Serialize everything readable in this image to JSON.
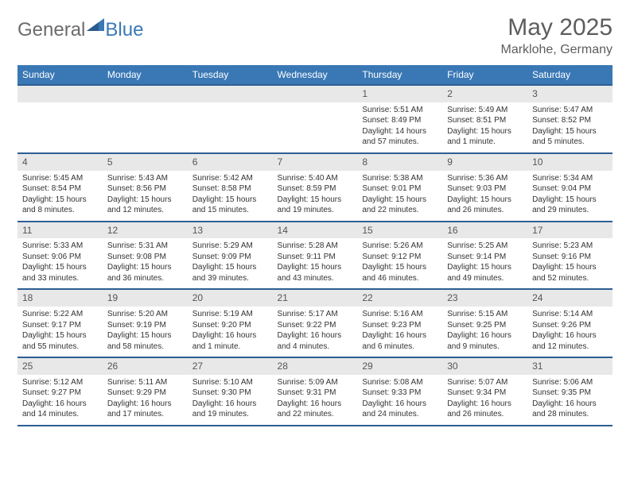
{
  "brand": {
    "part1": "General",
    "part2": "Blue"
  },
  "title": "May 2025",
  "location": "Marklohe, Germany",
  "colors": {
    "header_bg": "#3a78b5",
    "header_border": "#2d5e94",
    "daynum_bg": "#e8e8e8"
  },
  "day_headers": [
    "Sunday",
    "Monday",
    "Tuesday",
    "Wednesday",
    "Thursday",
    "Friday",
    "Saturday"
  ],
  "weeks": [
    [
      null,
      null,
      null,
      null,
      {
        "n": "1",
        "sr": "5:51 AM",
        "ss": "8:49 PM",
        "dl": "14 hours and 57 minutes."
      },
      {
        "n": "2",
        "sr": "5:49 AM",
        "ss": "8:51 PM",
        "dl": "15 hours and 1 minute."
      },
      {
        "n": "3",
        "sr": "5:47 AM",
        "ss": "8:52 PM",
        "dl": "15 hours and 5 minutes."
      }
    ],
    [
      {
        "n": "4",
        "sr": "5:45 AM",
        "ss": "8:54 PM",
        "dl": "15 hours and 8 minutes."
      },
      {
        "n": "5",
        "sr": "5:43 AM",
        "ss": "8:56 PM",
        "dl": "15 hours and 12 minutes."
      },
      {
        "n": "6",
        "sr": "5:42 AM",
        "ss": "8:58 PM",
        "dl": "15 hours and 15 minutes."
      },
      {
        "n": "7",
        "sr": "5:40 AM",
        "ss": "8:59 PM",
        "dl": "15 hours and 19 minutes."
      },
      {
        "n": "8",
        "sr": "5:38 AM",
        "ss": "9:01 PM",
        "dl": "15 hours and 22 minutes."
      },
      {
        "n": "9",
        "sr": "5:36 AM",
        "ss": "9:03 PM",
        "dl": "15 hours and 26 minutes."
      },
      {
        "n": "10",
        "sr": "5:34 AM",
        "ss": "9:04 PM",
        "dl": "15 hours and 29 minutes."
      }
    ],
    [
      {
        "n": "11",
        "sr": "5:33 AM",
        "ss": "9:06 PM",
        "dl": "15 hours and 33 minutes."
      },
      {
        "n": "12",
        "sr": "5:31 AM",
        "ss": "9:08 PM",
        "dl": "15 hours and 36 minutes."
      },
      {
        "n": "13",
        "sr": "5:29 AM",
        "ss": "9:09 PM",
        "dl": "15 hours and 39 minutes."
      },
      {
        "n": "14",
        "sr": "5:28 AM",
        "ss": "9:11 PM",
        "dl": "15 hours and 43 minutes."
      },
      {
        "n": "15",
        "sr": "5:26 AM",
        "ss": "9:12 PM",
        "dl": "15 hours and 46 minutes."
      },
      {
        "n": "16",
        "sr": "5:25 AM",
        "ss": "9:14 PM",
        "dl": "15 hours and 49 minutes."
      },
      {
        "n": "17",
        "sr": "5:23 AM",
        "ss": "9:16 PM",
        "dl": "15 hours and 52 minutes."
      }
    ],
    [
      {
        "n": "18",
        "sr": "5:22 AM",
        "ss": "9:17 PM",
        "dl": "15 hours and 55 minutes."
      },
      {
        "n": "19",
        "sr": "5:20 AM",
        "ss": "9:19 PM",
        "dl": "15 hours and 58 minutes."
      },
      {
        "n": "20",
        "sr": "5:19 AM",
        "ss": "9:20 PM",
        "dl": "16 hours and 1 minute."
      },
      {
        "n": "21",
        "sr": "5:17 AM",
        "ss": "9:22 PM",
        "dl": "16 hours and 4 minutes."
      },
      {
        "n": "22",
        "sr": "5:16 AM",
        "ss": "9:23 PM",
        "dl": "16 hours and 6 minutes."
      },
      {
        "n": "23",
        "sr": "5:15 AM",
        "ss": "9:25 PM",
        "dl": "16 hours and 9 minutes."
      },
      {
        "n": "24",
        "sr": "5:14 AM",
        "ss": "9:26 PM",
        "dl": "16 hours and 12 minutes."
      }
    ],
    [
      {
        "n": "25",
        "sr": "5:12 AM",
        "ss": "9:27 PM",
        "dl": "16 hours and 14 minutes."
      },
      {
        "n": "26",
        "sr": "5:11 AM",
        "ss": "9:29 PM",
        "dl": "16 hours and 17 minutes."
      },
      {
        "n": "27",
        "sr": "5:10 AM",
        "ss": "9:30 PM",
        "dl": "16 hours and 19 minutes."
      },
      {
        "n": "28",
        "sr": "5:09 AM",
        "ss": "9:31 PM",
        "dl": "16 hours and 22 minutes."
      },
      {
        "n": "29",
        "sr": "5:08 AM",
        "ss": "9:33 PM",
        "dl": "16 hours and 24 minutes."
      },
      {
        "n": "30",
        "sr": "5:07 AM",
        "ss": "9:34 PM",
        "dl": "16 hours and 26 minutes."
      },
      {
        "n": "31",
        "sr": "5:06 AM",
        "ss": "9:35 PM",
        "dl": "16 hours and 28 minutes."
      }
    ]
  ],
  "labels": {
    "sunrise": "Sunrise: ",
    "sunset": "Sunset: ",
    "daylight": "Daylight: "
  }
}
